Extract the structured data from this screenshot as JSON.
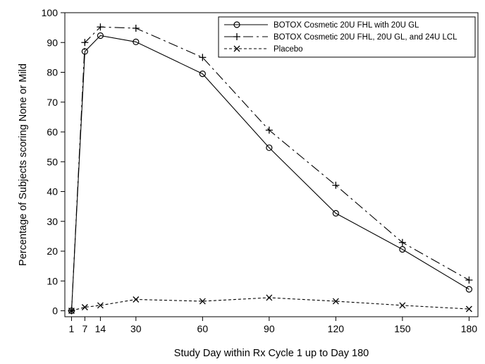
{
  "chart_data": {
    "type": "line",
    "title": "",
    "xlabel": "Study Day within Rx Cycle 1 up to Day 180",
    "ylabel": "Percentage of Subjects scoring None or Mild",
    "x": [
      1,
      7,
      14,
      30,
      60,
      90,
      120,
      150,
      180
    ],
    "x_ticks": [
      1,
      7,
      14,
      30,
      60,
      90,
      120,
      150,
      180
    ],
    "xlim": [
      -2,
      184
    ],
    "y_ticks": [
      0,
      10,
      20,
      30,
      40,
      50,
      60,
      70,
      80,
      90,
      100
    ],
    "ylim": [
      -2,
      100
    ],
    "grid": false,
    "legend_position": "top-right",
    "series": [
      {
        "name": "BOTOX Cosmetic 20U FHL with 20U GL",
        "values": [
          0,
          87,
          92.3,
          90.2,
          79.5,
          54.7,
          32.7,
          20.6,
          7.2
        ],
        "marker": "circle",
        "line": "solid",
        "color": "#000000"
      },
      {
        "name": "BOTOX Cosmetic 20U FHL, 20U GL, and 24U LCL",
        "values": [
          0,
          90,
          95.2,
          94.8,
          85,
          60.6,
          42.1,
          22.9,
          10.3
        ],
        "marker": "plus",
        "line": "dashdot",
        "color": "#000000"
      },
      {
        "name": "Placebo",
        "values": [
          0,
          1.2,
          1.8,
          3.8,
          3.2,
          4.4,
          3.2,
          1.8,
          0.6
        ],
        "marker": "x",
        "line": "dashed",
        "color": "#000000"
      }
    ]
  }
}
